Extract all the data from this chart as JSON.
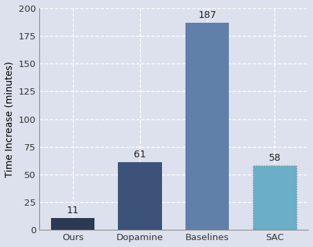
{
  "categories": [
    "Ours",
    "Dopamine",
    "Baselines",
    "SAC"
  ],
  "values": [
    11,
    61,
    187,
    58
  ],
  "bar_colors": [
    "#2b3a52",
    "#3d5278",
    "#6080aa",
    "#6aaec8"
  ],
  "ylabel": "Time Increase (minutes)",
  "ylim": [
    0,
    200
  ],
  "yticks": [
    0,
    25,
    50,
    75,
    100,
    125,
    150,
    175,
    200
  ],
  "background_color": "#dde0ed",
  "grid_color": "#ffffff",
  "bar_width": 0.65,
  "annotation_fontsize": 10,
  "label_fontsize": 10,
  "tick_fontsize": 9.5
}
